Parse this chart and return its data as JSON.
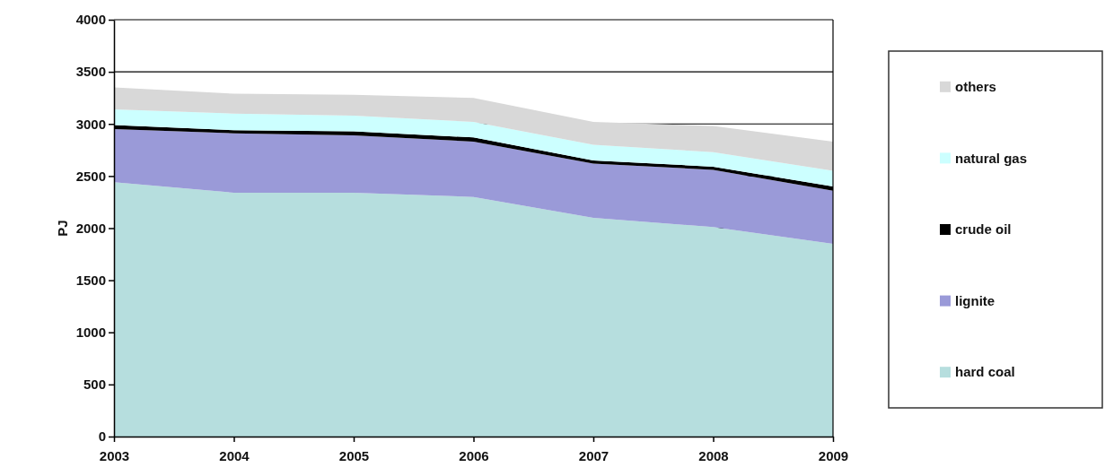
{
  "chart_data": {
    "type": "area",
    "stacked": true,
    "ylabel": "PJ",
    "categories": [
      "2003",
      "2004",
      "2005",
      "2006",
      "2007",
      "2008",
      "2009"
    ],
    "series": [
      {
        "name": "hard coal",
        "color": "#b6dede",
        "values": [
          2440,
          2340,
          2340,
          2300,
          2100,
          2010,
          1850
        ]
      },
      {
        "name": "lignite",
        "color": "#9a9ad8",
        "values": [
          510,
          570,
          550,
          530,
          520,
          550,
          510
        ]
      },
      {
        "name": "crude oil",
        "color": "#000000",
        "values": [
          40,
          30,
          40,
          40,
          30,
          30,
          40
        ]
      },
      {
        "name": "natural gas",
        "color": "#ccffff",
        "values": [
          150,
          160,
          150,
          150,
          150,
          140,
          150
        ]
      },
      {
        "name": "others",
        "color": "#d8d8d8",
        "values": [
          210,
          190,
          200,
          230,
          220,
          250,
          280
        ]
      }
    ],
    "ylim": [
      0,
      4000
    ],
    "yticks": [
      0,
      500,
      1000,
      1500,
      2000,
      2500,
      3000,
      3500,
      4000
    ],
    "grid": "y",
    "legend": "right"
  }
}
